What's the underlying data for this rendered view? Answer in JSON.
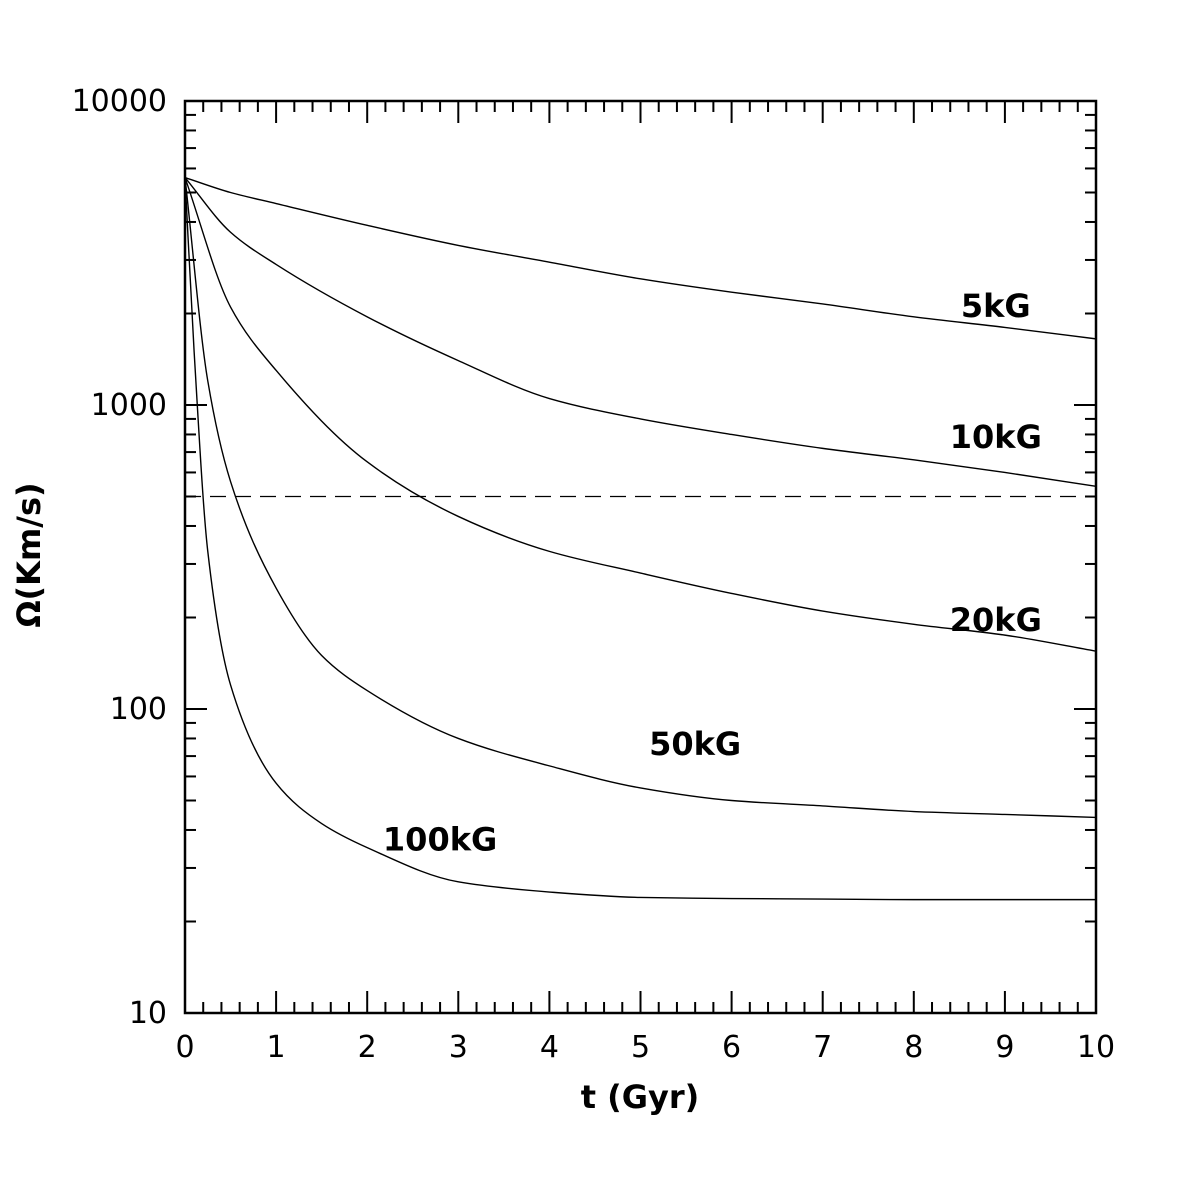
{
  "chart_data": {
    "type": "line",
    "title": "",
    "xlabel": "t (Gyr)",
    "ylabel": "Ω(Km/s)",
    "xscale": "linear",
    "yscale": "log",
    "xlim": [
      0,
      10
    ],
    "ylim": [
      10,
      10000
    ],
    "x_ticks": [
      "0",
      "1",
      "2",
      "3",
      "4",
      "5",
      "6",
      "7",
      "8",
      "9",
      "10"
    ],
    "y_ticks": [
      "10",
      "100",
      "1000",
      "10000"
    ],
    "grid": false,
    "legend": "none",
    "reference_line": {
      "y": 500,
      "style": "dashed"
    },
    "series": [
      {
        "name": "5kG",
        "x": [
          0,
          0.5,
          1,
          2,
          3,
          4,
          5,
          6,
          7,
          8,
          9,
          10
        ],
        "values": [
          5600,
          5000,
          4600,
          3900,
          3350,
          2950,
          2600,
          2350,
          2150,
          1950,
          1800,
          1650
        ]
      },
      {
        "name": "10kG",
        "x": [
          0,
          0.5,
          1,
          2,
          3,
          4,
          5,
          6,
          7,
          8,
          9,
          10
        ],
        "values": [
          5600,
          3700,
          2900,
          1950,
          1400,
          1050,
          900,
          800,
          720,
          660,
          600,
          540
        ]
      },
      {
        "name": "20kG",
        "x": [
          0,
          0.5,
          1,
          2,
          3,
          4,
          5,
          6,
          7,
          8,
          9,
          10
        ],
        "values": [
          5600,
          2100,
          1300,
          650,
          430,
          330,
          280,
          240,
          210,
          190,
          175,
          155
        ]
      },
      {
        "name": "50kG",
        "x": [
          0,
          0.25,
          0.5,
          1,
          1.5,
          2,
          3,
          4,
          5,
          6,
          7,
          8,
          9,
          10
        ],
        "values": [
          5600,
          1200,
          560,
          250,
          150,
          115,
          80,
          65,
          55,
          50,
          48,
          46,
          45,
          44
        ]
      },
      {
        "name": "100kG",
        "x": [
          0,
          0.1,
          0.25,
          0.5,
          1,
          1.5,
          2,
          3,
          4,
          5,
          6,
          7,
          8,
          9,
          10
        ],
        "values": [
          5600,
          1500,
          330,
          120,
          57,
          42,
          35,
          27,
          25,
          24,
          23.8,
          23.7,
          23.6,
          23.6,
          23.6
        ]
      }
    ]
  }
}
